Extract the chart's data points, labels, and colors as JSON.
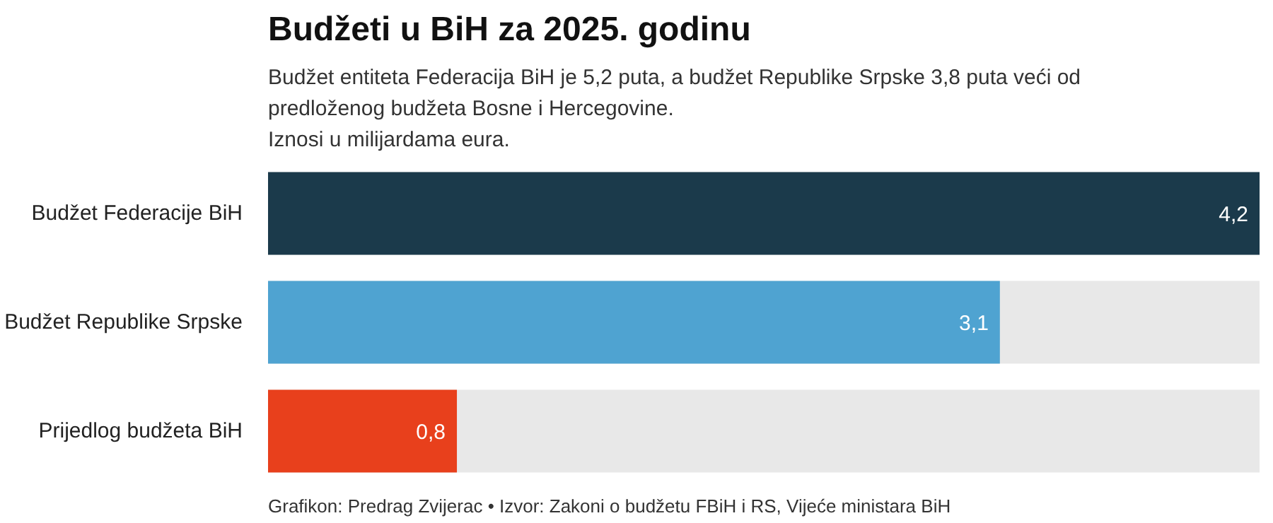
{
  "chart_data": {
    "type": "bar",
    "orientation": "horizontal",
    "title": "Budžeti u BiH za 2025. godinu",
    "subtitle": "Budžet entiteta Federacija BiH je 5,2 puta, a budžet Republike Srpske 3,8 puta veći od\npredloženog budžeta Bosne i Hercegovine.\nIznosi u milijardama eura.",
    "categories": [
      "Budžet Federacije BiH",
      "Budžet Republike Srpske",
      "Prijedlog budžeta BiH"
    ],
    "values": [
      4.2,
      3.1,
      0.8
    ],
    "colors": [
      "#1b3a4b",
      "#4fa3d1",
      "#e8401c"
    ],
    "value_labels": [
      "4,2",
      "3,1",
      "0,8"
    ],
    "annotations": [
      "Grafikon: Predrag Zvijerac • Izvor: Zakoni o budžetu FBiH i RS, Vijeće ministara BiH"
    ],
    "grid": false
  }
}
